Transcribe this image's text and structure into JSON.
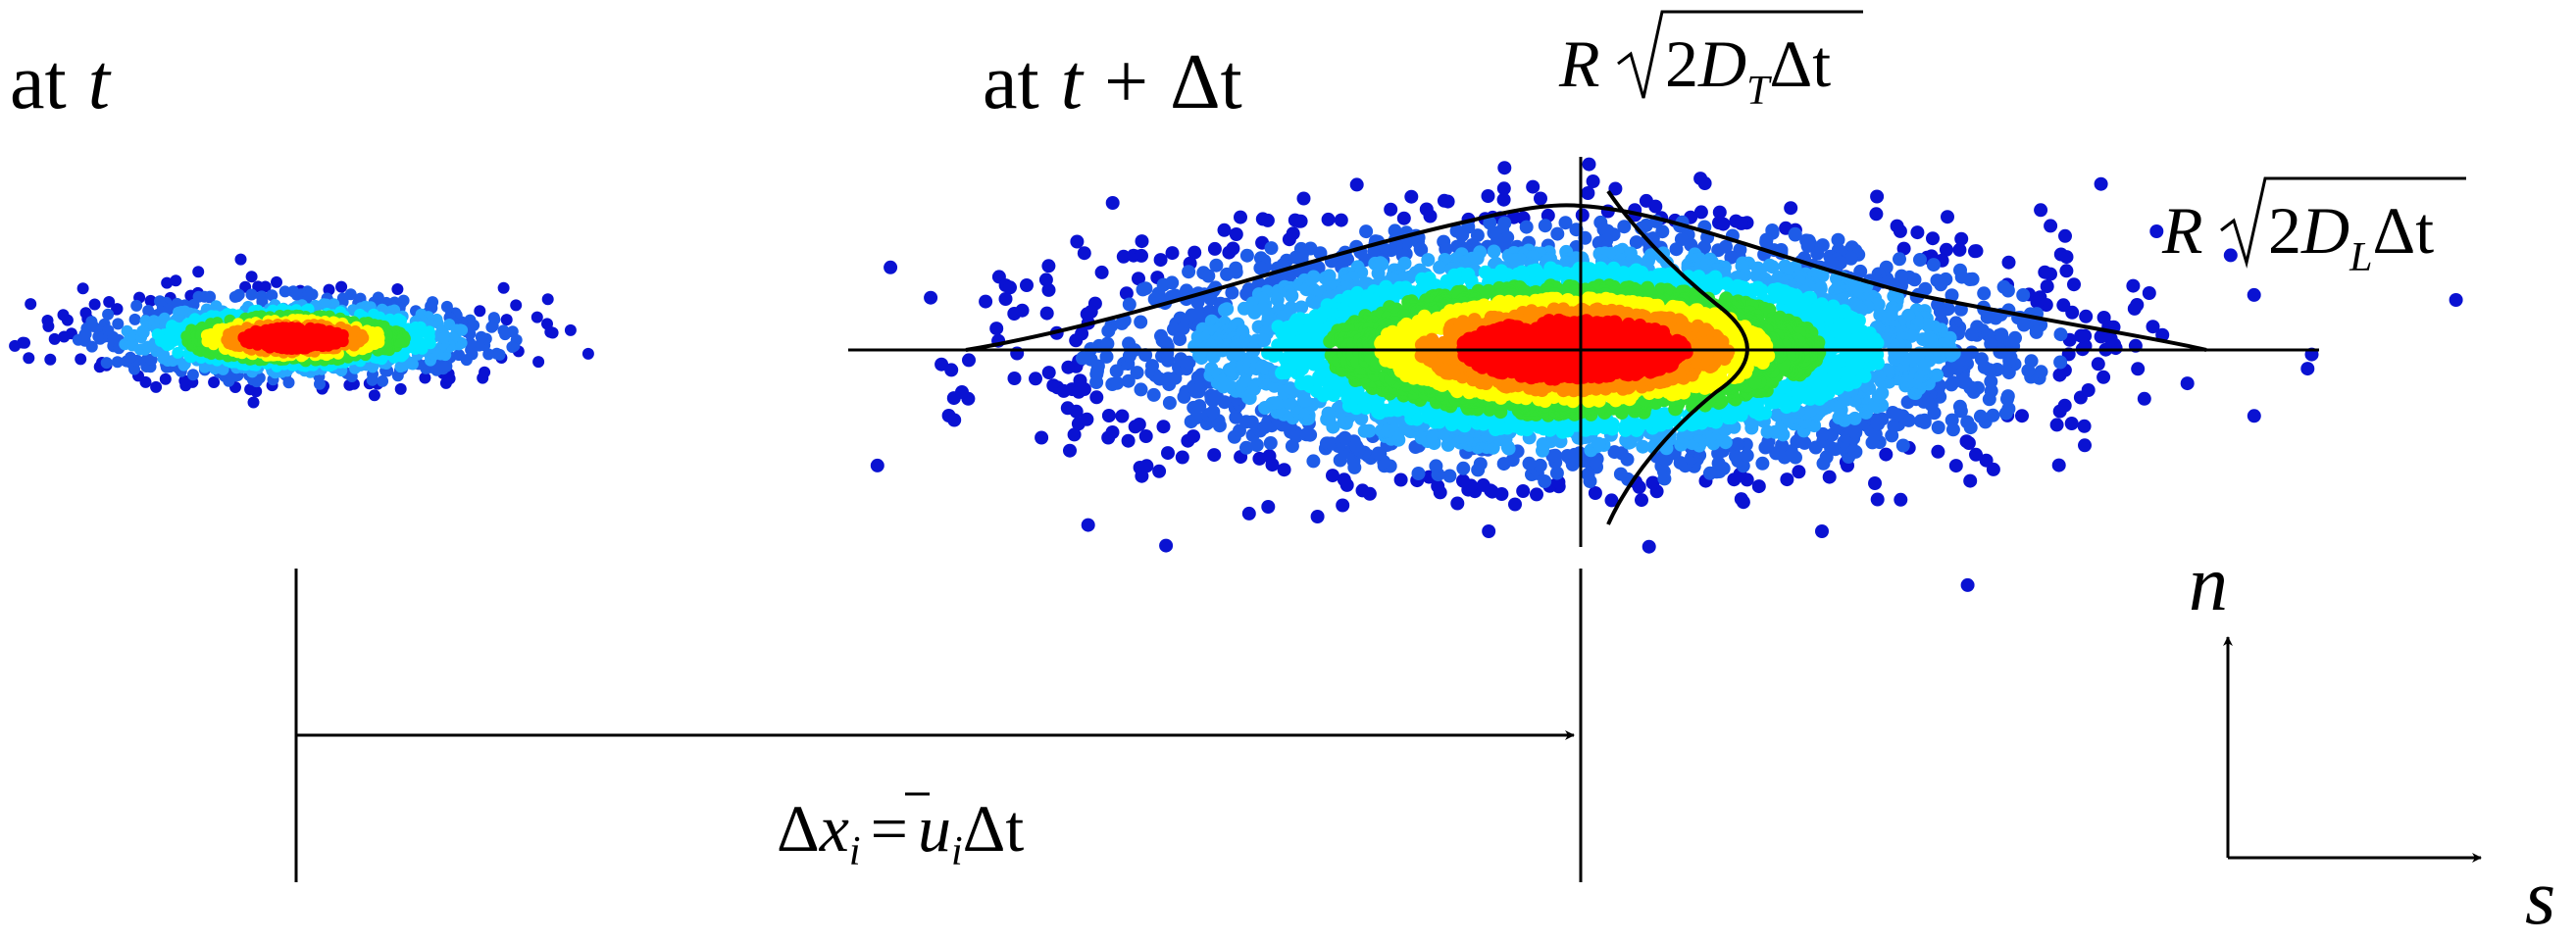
{
  "labels": {
    "at_t_prefix": "at",
    "at_t_var": "t",
    "at_t_dt_prefix": "at",
    "at_t_dt_var": "t",
    "at_t_dt_op": "+",
    "at_t_dt_delta": "Δt",
    "transverse": {
      "R": "R",
      "two": "2",
      "D": "D",
      "sub": "T",
      "dt": "Δt"
    },
    "longitudinal": {
      "R": "R",
      "two": "2",
      "D": "D",
      "sub": "L",
      "dt": "Δt"
    },
    "displacement": {
      "delta": "Δ",
      "x": "x",
      "sub_i": "i",
      "eq": "=",
      "u": "u",
      "sub_u": "i",
      "dt": "Δt"
    },
    "axis_n": "n",
    "axis_s": "s"
  },
  "colors": {
    "red": "#ff0000",
    "orange": "#ff8c00",
    "yellow": "#ffff00",
    "green": "#33e033",
    "cyan": "#00e5ff",
    "skyblue": "#28a7ff",
    "blue": "#1e5ce8",
    "darkblue": "#0a12d2",
    "line": "#000000"
  }
}
